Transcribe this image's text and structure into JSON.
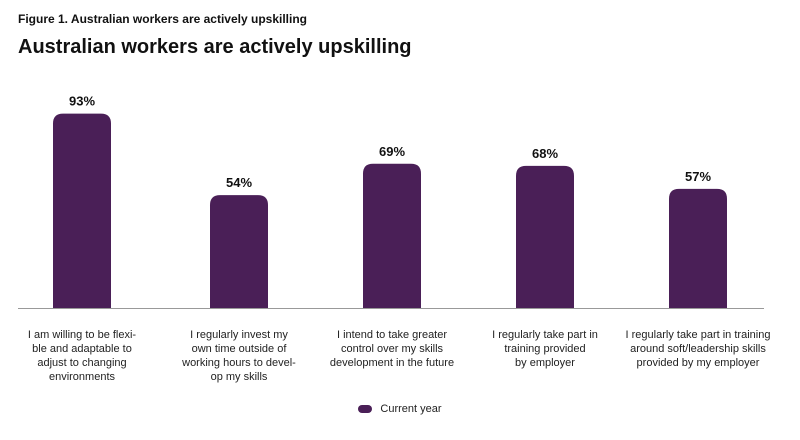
{
  "figure_label": "Figure 1. Australian workers are actively upskilling",
  "chart_data": {
    "type": "bar",
    "title": "Australian workers are actively upskilling",
    "categories": [
      "I am willing to be flexi-\nble and adaptable to\nadjust to changing\nenvironments",
      "I regularly invest my\nown time outside of\nworking hours to devel-\nop my skills",
      "I intend to take greater\ncontrol over my skills\ndevelopment in the future",
      "I regularly take part in\ntraining provided\nby employer",
      "I regularly take part in training\naround soft/leadership skills\nprovided by my employer"
    ],
    "series": [
      {
        "name": "Current year",
        "values": [
          93,
          54,
          69,
          68,
          57
        ],
        "labels": [
          "93%",
          "54%",
          "69%",
          "68%",
          "57%"
        ],
        "color": "#4a1f57"
      }
    ],
    "ylim": [
      0,
      100
    ],
    "grid": false,
    "legend_position": "bottom-center",
    "baseline_color": "#999999"
  }
}
